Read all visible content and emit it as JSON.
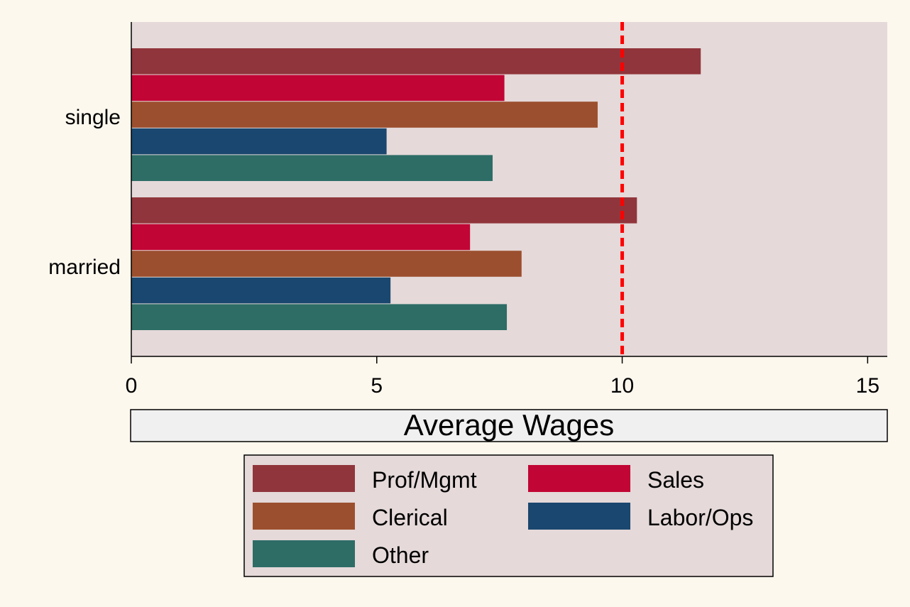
{
  "chart_data": {
    "type": "bar",
    "orientation": "horizontal",
    "categories": [
      "single",
      "married"
    ],
    "series": [
      {
        "name": "Prof/Mgmt",
        "values": [
          11.6,
          10.3
        ],
        "color": "#90353b"
      },
      {
        "name": "Sales",
        "values": [
          7.6,
          6.9
        ],
        "color": "#c10534"
      },
      {
        "name": "Clerical",
        "values": [
          9.5,
          7.95
        ],
        "color": "#9c4f2e"
      },
      {
        "name": "Labor/Ops",
        "values": [
          5.2,
          5.28
        ],
        "color": "#1a476f"
      },
      {
        "name": "Other",
        "values": [
          7.36,
          7.65
        ],
        "color": "#2d6d66"
      }
    ],
    "xlabel": "Average Wages",
    "xlim": [
      0,
      15.4
    ],
    "xticks": [
      "0",
      "5",
      "10",
      "15"
    ],
    "reference_line": {
      "value": 10,
      "color": "#ff0000",
      "style": "dashed"
    },
    "grid": false,
    "legend_position": "bottom",
    "plot_background": "#e5d9d9",
    "page_background": "#fdf8ee",
    "axis_title_background": "#f0f0f0"
  }
}
